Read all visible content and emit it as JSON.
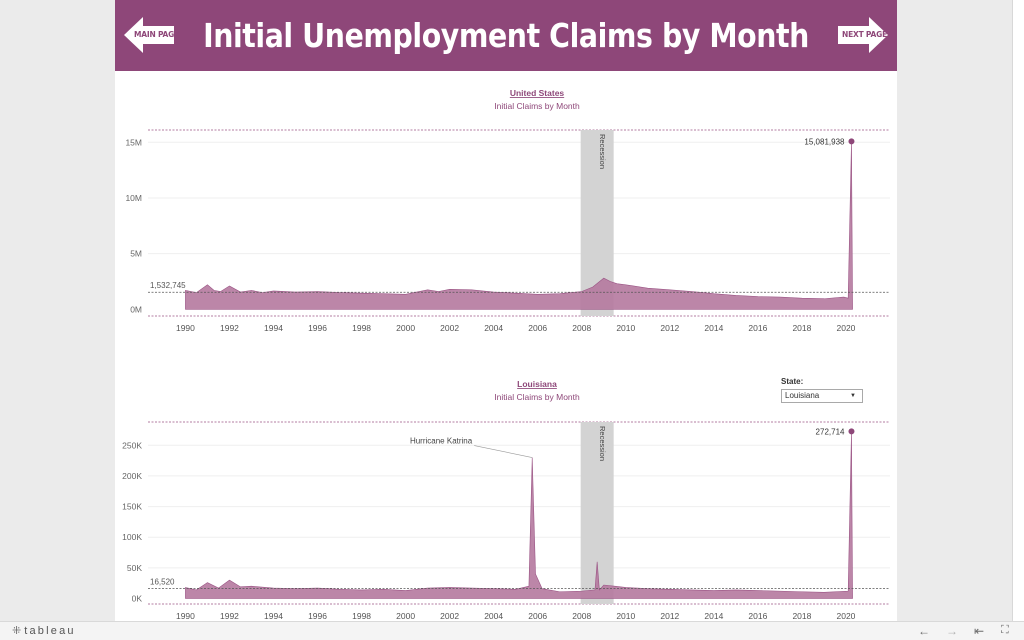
{
  "banner": {
    "title": "Initial Unemployment Claims by Month",
    "main_page_label": "MAIN PAGE",
    "next_page_label": "NEXT PAGE",
    "background_color": "#8e4779"
  },
  "filter": {
    "label": "State:",
    "selected": "Louisiana"
  },
  "footer": {
    "logo_text": "tableau"
  },
  "colors": {
    "area": "#b5799f",
    "area_edge": "#9a5384",
    "title": "#8e4779",
    "recession": "#d3d3d3"
  },
  "chart_data": [
    {
      "type": "area",
      "title": "United States",
      "subtitle": "Initial Claims by Month",
      "x_range": [
        1988.3,
        2022.0
      ],
      "x_ticks": [
        1990,
        1992,
        1994,
        1996,
        1998,
        2000,
        2002,
        2004,
        2006,
        2008,
        2010,
        2012,
        2014,
        2016,
        2018,
        2020
      ],
      "y_ticks": [
        {
          "v": 0,
          "label": "0M"
        },
        {
          "v": 5000000,
          "label": "5M"
        },
        {
          "v": 10000000,
          "label": "10M"
        },
        {
          "v": 15000000,
          "label": "15M"
        }
      ],
      "y_range": [
        -600000,
        16100000
      ],
      "reference_line": {
        "value": 1532745,
        "label": "1,532,745"
      },
      "recession": {
        "start": 2007.95,
        "end": 2009.45,
        "label": "Recession"
      },
      "highlight": {
        "x": 2020.25,
        "value": 15081938,
        "label": "15,081,938"
      },
      "series": [
        {
          "x": [
            1990.0,
            1990.5,
            1991.0,
            1991.3,
            1991.6,
            1992.0,
            1992.5,
            1993.0,
            1993.5,
            1994.0,
            1995.0,
            1996.0,
            1997.0,
            1998.0,
            1999.0,
            2000.0,
            2001.0,
            2001.5,
            2002.0,
            2003.0,
            2004.0,
            2005.0,
            2006.0,
            2007.0,
            2008.0,
            2008.5,
            2009.0,
            2009.3,
            2009.6,
            2010.0,
            2011.0,
            2012.0,
            2013.0,
            2014.0,
            2015.0,
            2016.0,
            2017.0,
            2018.0,
            2019.0,
            2019.9,
            2020.1,
            2020.25,
            2020.3
          ],
          "values": [
            1700000,
            1500000,
            2200000,
            1700000,
            1600000,
            2100000,
            1550000,
            1700000,
            1500000,
            1650000,
            1550000,
            1600000,
            1500000,
            1450000,
            1400000,
            1350000,
            1750000,
            1600000,
            1800000,
            1750000,
            1550000,
            1450000,
            1350000,
            1400000,
            1600000,
            2000000,
            2800000,
            2500000,
            2300000,
            2200000,
            1900000,
            1750000,
            1600000,
            1400000,
            1250000,
            1150000,
            1100000,
            1000000,
            950000,
            1100000,
            1000000,
            15081938,
            0
          ]
        }
      ]
    },
    {
      "type": "area",
      "title": "Louisiana",
      "subtitle": "Initial Claims by Month",
      "x_range": [
        1988.3,
        2022.0
      ],
      "x_ticks": [
        1990,
        1992,
        1994,
        1996,
        1998,
        2000,
        2002,
        2004,
        2006,
        2008,
        2010,
        2012,
        2014,
        2016,
        2018,
        2020
      ],
      "y_ticks": [
        {
          "v": 0,
          "label": "0K"
        },
        {
          "v": 50000,
          "label": "50K"
        },
        {
          "v": 100000,
          "label": "100K"
        },
        {
          "v": 150000,
          "label": "150K"
        },
        {
          "v": 200000,
          "label": "200K"
        },
        {
          "v": 250000,
          "label": "250K"
        }
      ],
      "y_range": [
        -9000,
        288000
      ],
      "reference_line": {
        "value": 16520,
        "label": "16,520"
      },
      "recession": {
        "start": 2007.95,
        "end": 2009.45,
        "label": "Recession"
      },
      "highlight": {
        "x": 2020.25,
        "value": 272714,
        "label": "272,714"
      },
      "annotations": [
        {
          "text": "Hurricane Katrina",
          "x": 2005.75,
          "value": 230000
        }
      ],
      "series": [
        {
          "x": [
            1990.0,
            1990.5,
            1991.0,
            1991.5,
            1992.0,
            1992.5,
            1993.0,
            1994.0,
            1995.0,
            1996.0,
            1997.0,
            1998.0,
            1999.0,
            2000.0,
            2001.0,
            2002.0,
            2003.0,
            2004.0,
            2005.0,
            2005.6,
            2005.75,
            2005.9,
            2006.2,
            2007.0,
            2008.0,
            2008.6,
            2008.7,
            2008.8,
            2009.0,
            2009.5,
            2010.0,
            2011.0,
            2012.0,
            2013.0,
            2014.0,
            2015.0,
            2016.0,
            2017.0,
            2018.0,
            2019.0,
            2020.1,
            2020.25,
            2020.3
          ],
          "values": [
            18000,
            14000,
            26000,
            17000,
            30000,
            19000,
            20000,
            17000,
            16000,
            17000,
            15000,
            14000,
            15000,
            13000,
            17000,
            18000,
            17000,
            16000,
            15000,
            20000,
            230000,
            40000,
            16000,
            11000,
            12000,
            14000,
            60000,
            14000,
            22000,
            20000,
            18000,
            16000,
            15000,
            14000,
            13000,
            14000,
            13000,
            12000,
            11000,
            10000,
            12000,
            272714,
            0
          ]
        }
      ]
    }
  ]
}
